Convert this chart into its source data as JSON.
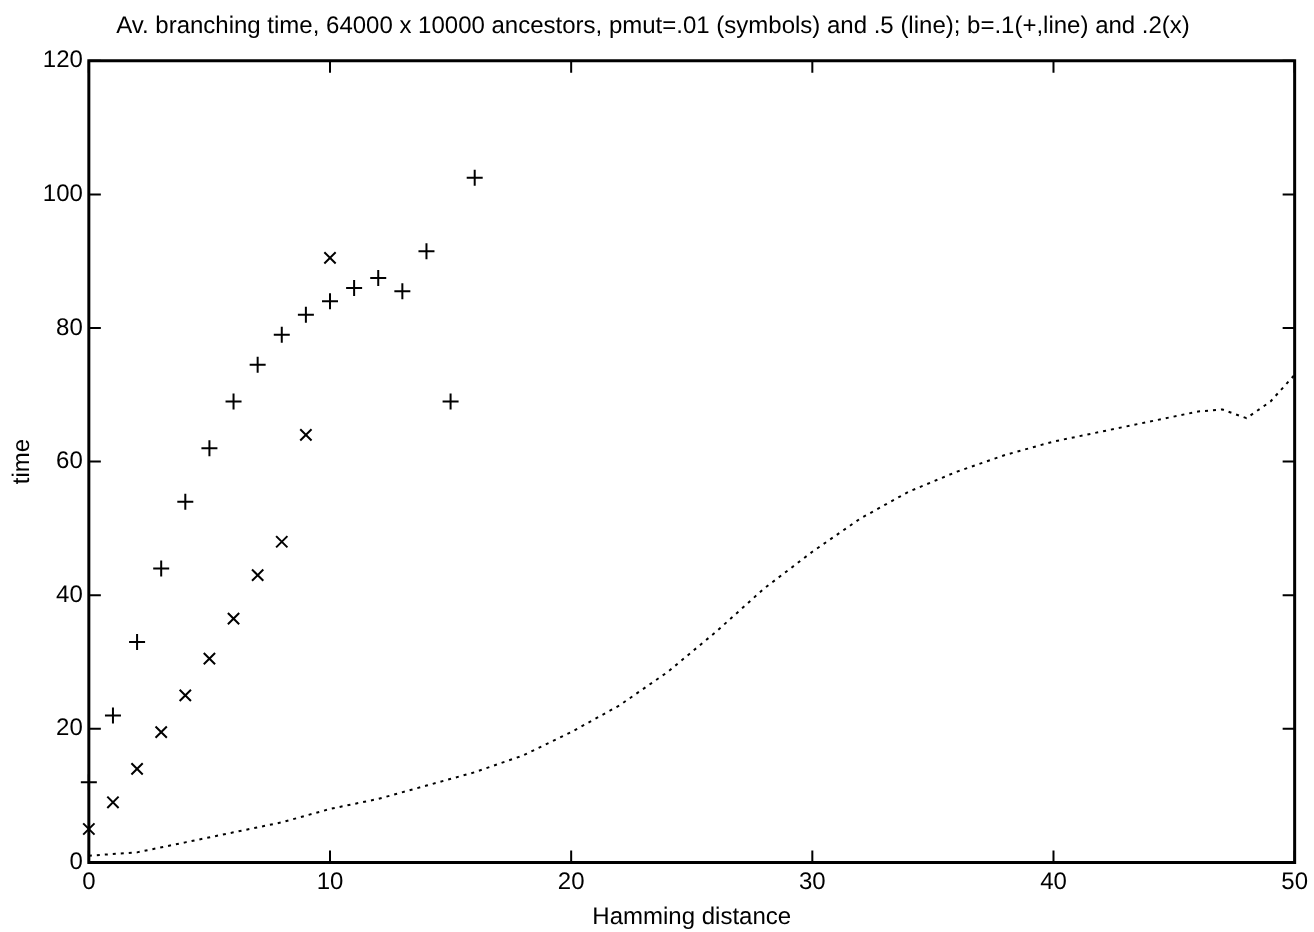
{
  "chart_data": {
    "type": "scatter",
    "title": "Av. branching time, 64000 x 10000 ancestors, pmut=.01 (symbols) and .5 (line); b=.1(+,line) and .2(x)",
    "xlabel": "Hamming distance",
    "ylabel": "time",
    "xlim": [
      0,
      50
    ],
    "ylim": [
      0,
      120
    ],
    "xticks": [
      0,
      10,
      20,
      30,
      40,
      50
    ],
    "yticks": [
      0,
      20,
      40,
      60,
      80,
      100,
      120
    ],
    "grid": false,
    "legend": false,
    "series": [
      {
        "marker": "plus",
        "color": "#000000",
        "x": [
          0,
          1,
          2,
          3,
          4,
          5,
          6,
          7,
          8,
          9,
          10,
          11,
          12,
          13,
          14,
          15,
          16
        ],
        "values": [
          12,
          22,
          33,
          44,
          54,
          62,
          69,
          74.5,
          79,
          82,
          84,
          86,
          87.5,
          85.5,
          91.5,
          69,
          102.5
        ]
      },
      {
        "marker": "cross",
        "color": "#000000",
        "x": [
          0,
          1,
          2,
          3,
          4,
          5,
          6,
          7,
          8,
          9,
          10
        ],
        "values": [
          5,
          9,
          14,
          19.5,
          25,
          30.5,
          36.5,
          43,
          48,
          64,
          90.5
        ]
      },
      {
        "type": "line",
        "marker": "none",
        "line_style": "dotted",
        "color": "#000000",
        "x": [
          0,
          2,
          4,
          6,
          8,
          10,
          12,
          14,
          16,
          18,
          20,
          22,
          24,
          26,
          28,
          30,
          32,
          34,
          36,
          38,
          40,
          42,
          44,
          46,
          47,
          48,
          49,
          50
        ],
        "values": [
          1,
          1.5,
          3,
          4.5,
          6,
          8,
          9.5,
          11.5,
          13.5,
          16,
          19.5,
          23.5,
          28.5,
          34.5,
          41,
          46.5,
          51.5,
          55.5,
          58.5,
          61,
          63,
          64.5,
          66,
          67.5,
          67.8,
          66.5,
          69,
          73
        ]
      }
    ]
  }
}
